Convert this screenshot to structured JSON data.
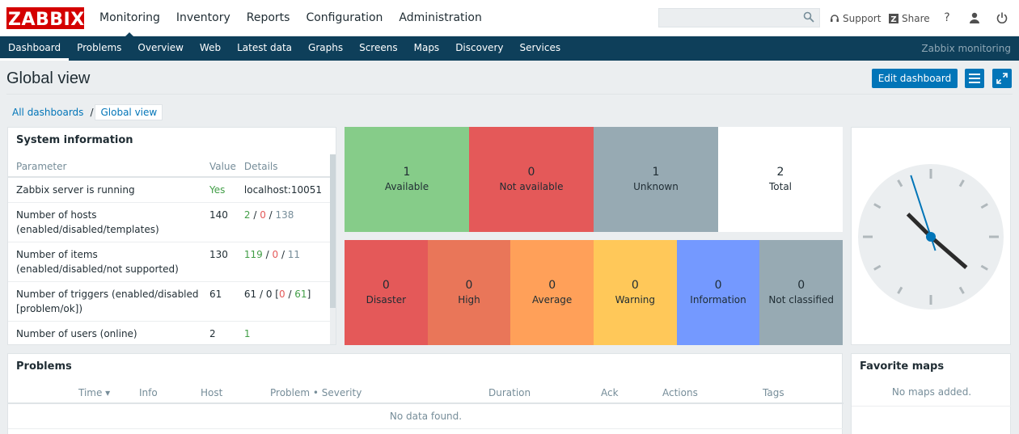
{
  "app": {
    "logo": "ZABBIX"
  },
  "main_nav": [
    {
      "label": "Monitoring",
      "active": true
    },
    {
      "label": "Inventory"
    },
    {
      "label": "Reports"
    },
    {
      "label": "Configuration"
    },
    {
      "label": "Administration"
    }
  ],
  "search": {
    "value": "",
    "placeholder": ""
  },
  "top_links": {
    "support": "Support",
    "share": "Share",
    "help": "?"
  },
  "sub_nav": [
    "Dashboard",
    "Problems",
    "Overview",
    "Web",
    "Latest data",
    "Graphs",
    "Screens",
    "Maps",
    "Discovery",
    "Services"
  ],
  "sub_nav_brand": "Zabbix monitoring",
  "page": {
    "title": "Global view",
    "edit_button": "Edit dashboard",
    "breadcrumb": {
      "parent": "All dashboards",
      "sep": "/",
      "current": "Global view"
    }
  },
  "system_info": {
    "title": "System information",
    "headers": {
      "parameter": "Parameter",
      "value": "Value",
      "details": "Details"
    },
    "rows": [
      {
        "param": "Zabbix server is running",
        "value": "Yes",
        "details": "localhost:10051"
      },
      {
        "param": "Number of hosts (enabled/disabled/templates)",
        "value": "140",
        "d1": "2",
        "sep1": " / ",
        "d2": "0",
        "sep2": " / ",
        "d3": "138"
      },
      {
        "param": "Number of items (enabled/disabled/not supported)",
        "value": "130",
        "d1": "119",
        "sep1": " / ",
        "d2": "0",
        "sep2": " / ",
        "d3": "11"
      },
      {
        "param": "Number of triggers (enabled/disabled [problem/ok])",
        "value": "61",
        "pre": "61 / 0 [",
        "d1": "0",
        "mid": " / ",
        "d2": "61",
        "post": "]"
      },
      {
        "param": "Number of users (online)",
        "value": "2",
        "details": "1"
      }
    ]
  },
  "host_availability": [
    {
      "count": "1",
      "label": "Available",
      "color": "#86cc89"
    },
    {
      "count": "0",
      "label": "Not available",
      "color": "#e45959"
    },
    {
      "count": "1",
      "label": "Unknown",
      "color": "#97aab3"
    },
    {
      "count": "2",
      "label": "Total",
      "color": "#ffffff"
    }
  ],
  "trigger_severity": [
    {
      "count": "0",
      "label": "Disaster",
      "color": "#e45959"
    },
    {
      "count": "0",
      "label": "High",
      "color": "#e97659"
    },
    {
      "count": "0",
      "label": "Average",
      "color": "#ffa059"
    },
    {
      "count": "0",
      "label": "Warning",
      "color": "#ffc859"
    },
    {
      "count": "0",
      "label": "Information",
      "color": "#7499ff"
    },
    {
      "count": "0",
      "label": "Not classified",
      "color": "#97aab3"
    }
  ],
  "clock": {
    "hour": 4,
    "minute": 22,
    "second": 27
  },
  "problems": {
    "title": "Problems",
    "columns": {
      "time": "Time ▾",
      "info": "Info",
      "host": "Host",
      "problem": "Problem • Severity",
      "duration": "Duration",
      "ack": "Ack",
      "actions": "Actions",
      "tags": "Tags"
    },
    "empty": "No data found."
  },
  "favorite_maps": {
    "title": "Favorite maps",
    "empty": "No maps added."
  }
}
